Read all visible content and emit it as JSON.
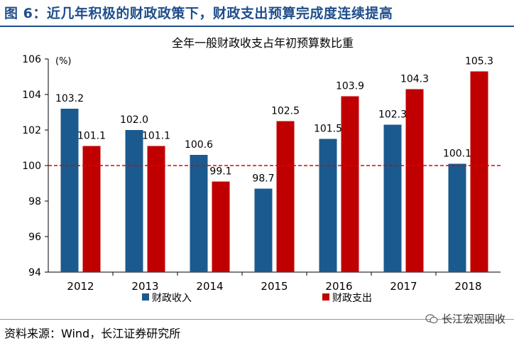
{
  "figure": {
    "title": "图 6：近几年积极的财政政策下，财政支出预算完成度连续提高",
    "source": "资料来源：Wind，长江证券研究所",
    "watermark": "长江宏观固收"
  },
  "colors": {
    "income": "#1b5a8e",
    "expense": "#c00000",
    "refline": "#e00000",
    "title": "#1f4e8c"
  },
  "chart_data": {
    "type": "bar",
    "title": "全年一般财政收支占年初预算数比重",
    "ylabel": "(%)",
    "categories": [
      "2012",
      "2013",
      "2014",
      "2015",
      "2016",
      "2017",
      "2018"
    ],
    "series": [
      {
        "name": "财政收入",
        "values": [
          103.2,
          102.0,
          100.6,
          98.7,
          101.5,
          102.3,
          100.1
        ],
        "labels": [
          "103.2",
          "102.0",
          "100.6",
          "98.7",
          "101.5",
          "102.3",
          "100.1"
        ]
      },
      {
        "name": "财政支出",
        "values": [
          101.1,
          101.1,
          99.1,
          102.5,
          103.9,
          104.3,
          105.3
        ],
        "labels": [
          "101.1",
          "101.1",
          "99.1",
          "102.5",
          "103.9",
          "104.3",
          "105.3"
        ]
      }
    ],
    "ylim": [
      94,
      106
    ],
    "yticks": [
      "94",
      "96",
      "98",
      "100",
      "102",
      "104",
      "106"
    ],
    "reference_line": 100,
    "legend_position": "bottom"
  }
}
